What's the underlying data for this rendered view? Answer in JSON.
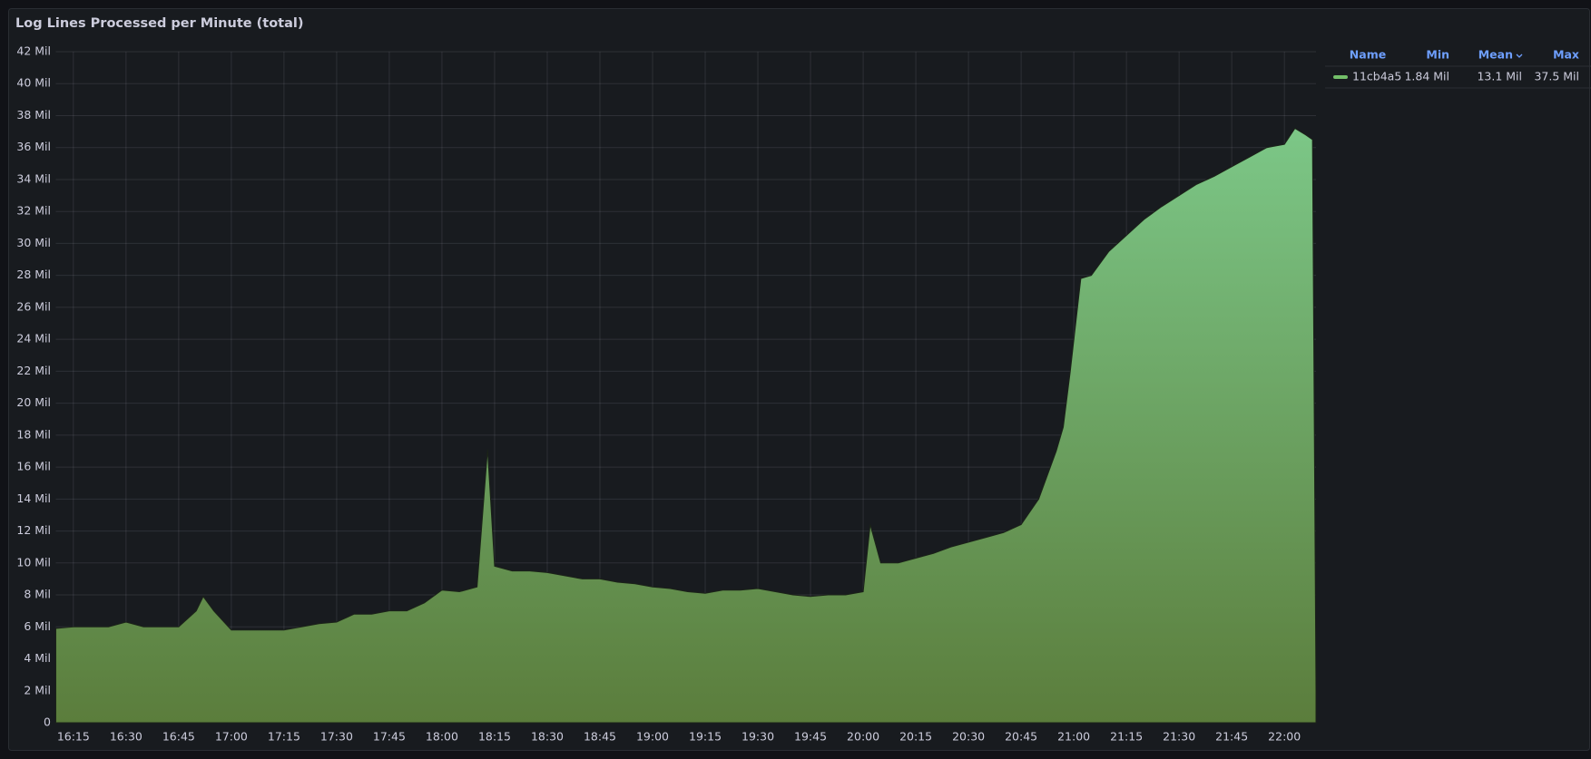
{
  "chart_data": {
    "type": "area",
    "title": "Log Lines Processed per Minute (total)",
    "x": [
      "16:10",
      "16:15",
      "16:20",
      "16:25",
      "16:30",
      "16:35",
      "16:40",
      "16:45",
      "16:50",
      "16:52",
      "16:55",
      "17:00",
      "17:05",
      "17:10",
      "17:15",
      "17:20",
      "17:25",
      "17:30",
      "17:35",
      "17:40",
      "17:45",
      "17:50",
      "17:55",
      "18:00",
      "18:05",
      "18:10",
      "18:13",
      "18:15",
      "18:20",
      "18:25",
      "18:30",
      "18:35",
      "18:40",
      "18:45",
      "18:50",
      "18:55",
      "19:00",
      "19:05",
      "19:10",
      "19:15",
      "19:20",
      "19:25",
      "19:30",
      "19:35",
      "19:40",
      "19:45",
      "19:50",
      "19:55",
      "20:00",
      "20:02",
      "20:05",
      "20:10",
      "20:15",
      "20:20",
      "20:25",
      "20:30",
      "20:35",
      "20:40",
      "20:45",
      "20:50",
      "20:55",
      "20:57",
      "20:59",
      "21:02",
      "21:05",
      "21:10",
      "21:15",
      "21:20",
      "21:25",
      "21:30",
      "21:35",
      "21:40",
      "21:45",
      "21:50",
      "21:55",
      "22:00",
      "22:03",
      "22:06",
      "22:08",
      "22:09"
    ],
    "series": [
      {
        "name": "11cb4a5",
        "color": "#73bf69",
        "values": [
          5.9,
          6.0,
          6.0,
          6.0,
          6.3,
          6.0,
          6.0,
          6.0,
          7.0,
          7.9,
          7.0,
          5.8,
          5.8,
          5.8,
          5.8,
          6.0,
          6.2,
          6.3,
          6.8,
          6.8,
          7.0,
          7.0,
          7.5,
          8.3,
          8.2,
          8.5,
          17.1,
          9.8,
          9.5,
          9.5,
          9.4,
          9.2,
          9.0,
          9.0,
          8.8,
          8.7,
          8.5,
          8.4,
          8.2,
          8.1,
          8.3,
          8.3,
          8.4,
          8.2,
          8.0,
          7.9,
          8.0,
          8.0,
          8.2,
          12.4,
          10.0,
          10.0,
          10.3,
          10.6,
          11.0,
          11.3,
          11.6,
          11.9,
          12.4,
          14.0,
          17.0,
          18.5,
          22.0,
          27.8,
          28.0,
          29.5,
          30.5,
          31.5,
          32.3,
          33.0,
          33.7,
          34.2,
          34.8,
          35.4,
          36.0,
          36.2,
          37.2,
          36.8,
          36.5,
          2
        ]
      }
    ],
    "xlim": [
      "16:10",
      "22:09"
    ],
    "xticks": [
      "16:15",
      "16:30",
      "16:45",
      "17:00",
      "17:15",
      "17:30",
      "17:45",
      "18:00",
      "18:15",
      "18:30",
      "18:45",
      "19:00",
      "19:15",
      "19:30",
      "19:45",
      "20:00",
      "20:15",
      "20:30",
      "20:45",
      "21:00",
      "21:15",
      "21:30",
      "21:45",
      "22:00"
    ],
    "ylim": [
      0,
      42
    ],
    "yticks": [
      0,
      {
        "value": 2,
        "label": "2 Mil"
      },
      {
        "value": 4,
        "label": "4 Mil"
      },
      {
        "value": 6,
        "label": "6 Mil"
      },
      {
        "value": 8,
        "label": "8 Mil"
      },
      {
        "value": 10,
        "label": "10 Mil"
      },
      {
        "value": 12,
        "label": "12 Mil"
      },
      {
        "value": 14,
        "label": "14 Mil"
      },
      {
        "value": 16,
        "label": "16 Mil"
      },
      {
        "value": 18,
        "label": "18 Mil"
      },
      {
        "value": 20,
        "label": "20 Mil"
      },
      {
        "value": 22,
        "label": "22 Mil"
      },
      {
        "value": 24,
        "label": "24 Mil"
      },
      {
        "value": 26,
        "label": "26 Mil"
      },
      {
        "value": 28,
        "label": "28 Mil"
      },
      {
        "value": 30,
        "label": "30 Mil"
      },
      {
        "value": 32,
        "label": "32 Mil"
      },
      {
        "value": 34,
        "label": "34 Mil"
      },
      {
        "value": 36,
        "label": "36 Mil"
      },
      {
        "value": 38,
        "label": "38 Mil"
      },
      {
        "value": 40,
        "label": "40 Mil"
      },
      {
        "value": 42,
        "label": "42 Mil"
      }
    ],
    "grid": true,
    "legend": {
      "columns": [
        "Name",
        "Min",
        "Mean",
        "Max"
      ],
      "stats": [
        "1.84 Mil",
        "13.1 Mil",
        "37.5 Mil"
      ]
    }
  }
}
